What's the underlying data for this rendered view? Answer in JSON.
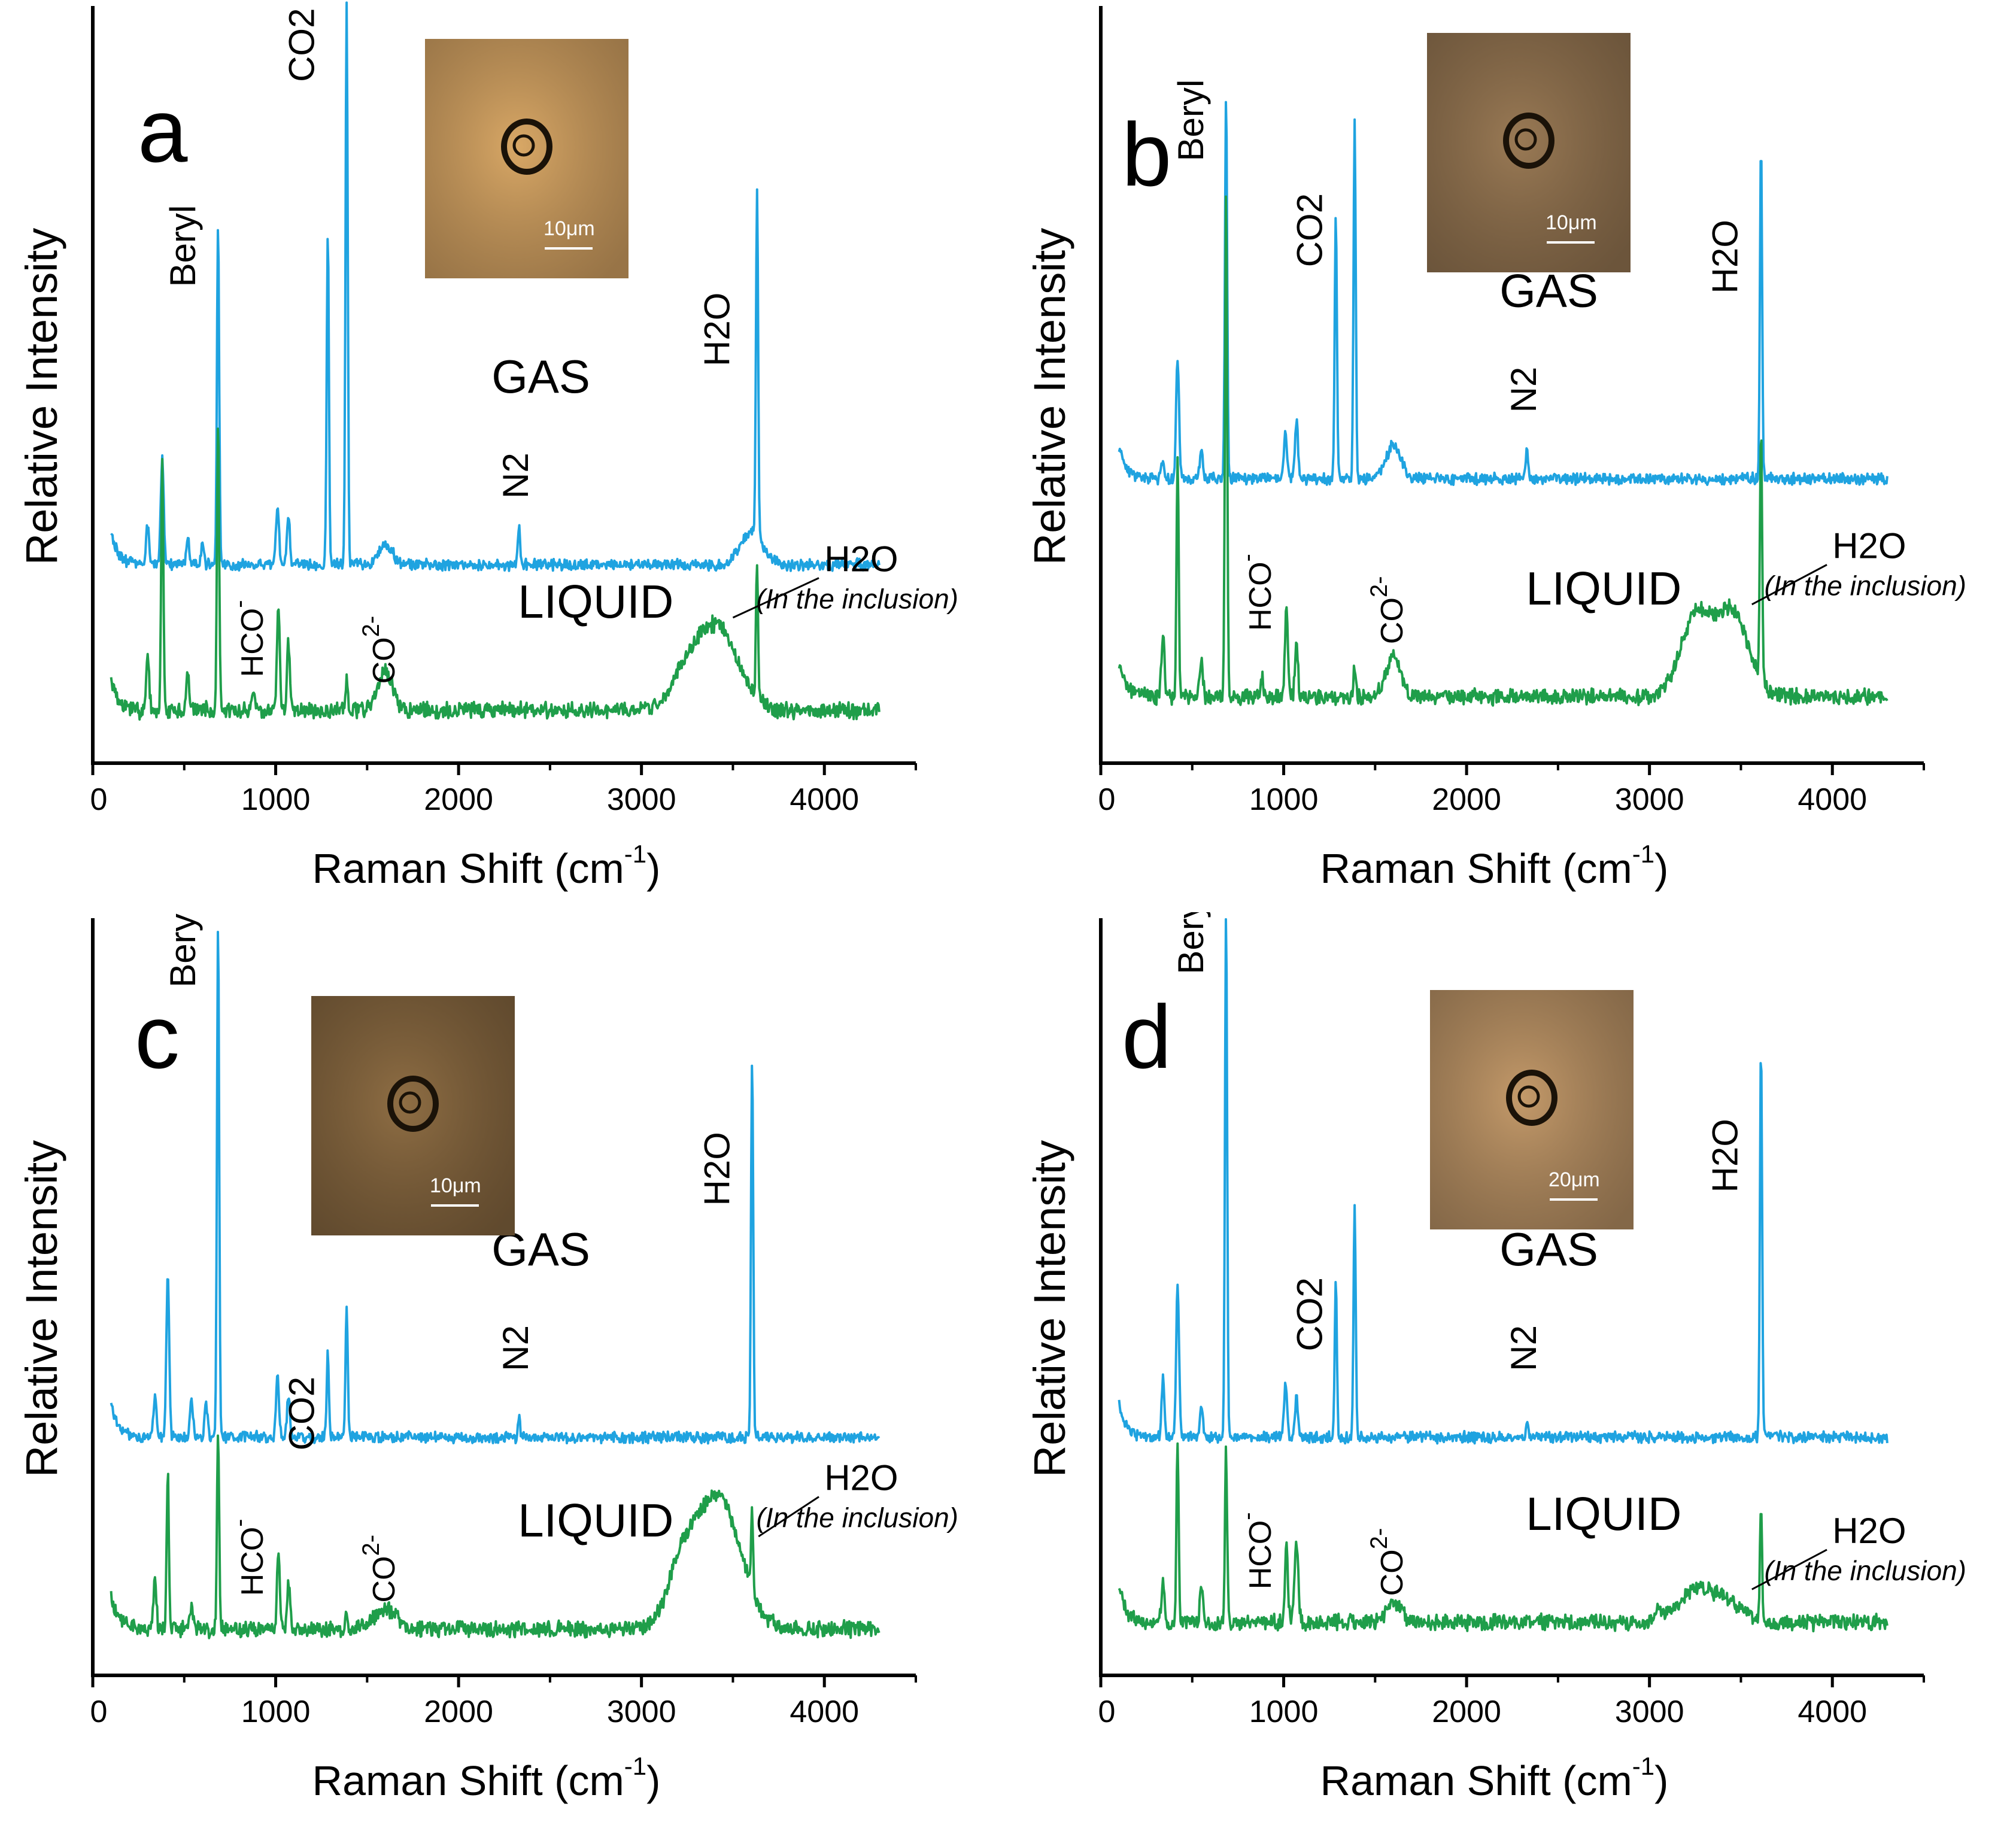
{
  "figure": {
    "panels": [
      {
        "letter": "a",
        "ylabel": "Relative  Intensity",
        "xlabel": "Raman  Shift (cm",
        "xlabel_sup": "-1",
        "xlabel_close": ")",
        "ticks": [
          "0",
          "1000",
          "2000",
          "3000",
          "4000"
        ],
        "gas_label": "GAS",
        "liquid_label": "LIQUID",
        "peak_labels": {
          "beryl": "Beryl",
          "co2": "CO2",
          "h2o": "H2O",
          "n2": "N2",
          "hco3": "HCO",
          "hco3_sup": "-",
          "co3": "CO",
          "co3_sup": "2-"
        },
        "h2o_inclusion_label": "H2O",
        "h2o_inclusion_note": "(In the inclusion)",
        "photo": {
          "scale_label": "10μm",
          "colors": {
            "bg": "#d9a866",
            "dark": "#3b2a1a"
          }
        }
      },
      {
        "letter": "b",
        "ylabel": "Relative  Intensity",
        "xlabel": "Raman  Shift (cm",
        "xlabel_sup": "-1",
        "xlabel_close": ")",
        "ticks": [
          "0",
          "1000",
          "2000",
          "3000",
          "4000"
        ],
        "gas_label": "GAS",
        "liquid_label": "LIQUID",
        "peak_labels": {
          "beryl": "Beryl",
          "co2": "CO2",
          "h2o": "H2O",
          "n2": "N2",
          "hco3": "HCO",
          "hco3_sup": "-",
          "co3": "CO",
          "co3_sup": "2-"
        },
        "h2o_inclusion_label": "H2O",
        "h2o_inclusion_note": "(In the inclusion)",
        "photo": {
          "scale_label": "10μm",
          "colors": {
            "bg": "#9a7a55",
            "dark": "#2a2016"
          }
        }
      },
      {
        "letter": "c",
        "ylabel": "Relative  Intensity",
        "xlabel": "Raman  Shift (cm",
        "xlabel_sup": "-1",
        "xlabel_close": ")",
        "ticks": [
          "0",
          "1000",
          "2000",
          "3000",
          "4000"
        ],
        "gas_label": "GAS",
        "liquid_label": "LIQUID",
        "peak_labels": {
          "beryl": "Beryl",
          "co2": "CO2",
          "h2o": "H2O",
          "n2": "N2",
          "hco3": "HCO",
          "hco3_sup": "-",
          "co3": "CO",
          "co3_sup": "2-"
        },
        "h2o_inclusion_label": "H2O",
        "h2o_inclusion_note": "(In the inclusion)",
        "photo": {
          "scale_label": "10μm",
          "colors": {
            "bg": "#8f6e44",
            "dark": "#1e160e"
          }
        }
      },
      {
        "letter": "d",
        "ylabel": "Relative  Intensity",
        "xlabel": "Raman  Shift (cm",
        "xlabel_sup": "-1",
        "xlabel_close": ")",
        "ticks": [
          "0",
          "1000",
          "2000",
          "3000",
          "4000"
        ],
        "gas_label": "GAS",
        "liquid_label": "LIQUID",
        "peak_labels": {
          "beryl": "Beryl",
          "co2": "CO2",
          "h2o": "H2O",
          "n2": "N2",
          "hco3": "HCO",
          "hco3_sup": "-",
          "co3": "CO",
          "co3_sup": "2-"
        },
        "h2o_inclusion_label": "H2O",
        "h2o_inclusion_note": "(In the inclusion)",
        "photo": {
          "scale_label": "20μm",
          "colors": {
            "bg": "#c49a6a",
            "dark": "#2a2118"
          }
        }
      }
    ]
  },
  "chart_data": [
    {
      "type": "line",
      "panel": "a",
      "xlabel": "Raman  Shift (cm-1)",
      "ylabel": "Relative  Intensity",
      "xlim": [
        0,
        4500
      ],
      "xticks": [
        0,
        1000,
        2000,
        3000,
        4000
      ],
      "colors": {
        "gas": "#1fa3e0",
        "liquid": "#1f9e4a"
      },
      "series": [
        {
          "name": "GAS",
          "base": 0.3,
          "peaks": [
            [
              300,
              0.06,
              8
            ],
            [
              380,
              0.16,
              8
            ],
            [
              520,
              0.04,
              8
            ],
            [
              600,
              0.03,
              8
            ],
            [
              685,
              0.52,
              6
            ],
            [
              1010,
              0.09,
              8
            ],
            [
              1070,
              0.07,
              8
            ],
            [
              1285,
              0.5,
              6
            ],
            [
              1388,
              0.85,
              6
            ],
            [
              1600,
              0.03,
              40
            ],
            [
              2330,
              0.06,
              6
            ],
            [
              3600,
              0.05,
              60
            ],
            [
              3632,
              0.52,
              6
            ]
          ]
        },
        {
          "name": "LIQUID",
          "base": 0.08,
          "peaks": [
            [
              300,
              0.08,
              8
            ],
            [
              380,
              0.38,
              6
            ],
            [
              520,
              0.06,
              8
            ],
            [
              685,
              0.44,
              6
            ],
            [
              880,
              0.03,
              8
            ],
            [
              1015,
              0.16,
              8
            ],
            [
              1070,
              0.1,
              8
            ],
            [
              1388,
              0.05,
              6
            ],
            [
              1600,
              0.06,
              40
            ],
            [
              3250,
              0.05,
              90
            ],
            [
              3420,
              0.12,
              110
            ],
            [
              3632,
              0.2,
              6
            ]
          ]
        }
      ]
    },
    {
      "type": "line",
      "panel": "b",
      "xlabel": "Raman  Shift (cm-1)",
      "ylabel": "Relative  Intensity",
      "xlim": [
        0,
        4500
      ],
      "xticks": [
        0,
        1000,
        2000,
        3000,
        4000
      ],
      "colors": {
        "gas": "#1fa3e0",
        "liquid": "#1f9e4a"
      },
      "series": [
        {
          "name": "GAS",
          "base": 0.43,
          "peaks": [
            [
              340,
              0.03,
              8
            ],
            [
              420,
              0.18,
              8
            ],
            [
              550,
              0.04,
              8
            ],
            [
              685,
              0.58,
              6
            ],
            [
              1010,
              0.07,
              8
            ],
            [
              1070,
              0.09,
              8
            ],
            [
              1285,
              0.4,
              6
            ],
            [
              1388,
              0.54,
              6
            ],
            [
              1600,
              0.05,
              40
            ],
            [
              2330,
              0.05,
              6
            ],
            [
              3610,
              0.5,
              6
            ]
          ]
        },
        {
          "name": "LIQUID",
          "base": 0.1,
          "peaks": [
            [
              340,
              0.1,
              8
            ],
            [
              420,
              0.36,
              6
            ],
            [
              550,
              0.06,
              8
            ],
            [
              685,
              0.76,
              6
            ],
            [
              880,
              0.03,
              8
            ],
            [
              1015,
              0.14,
              8
            ],
            [
              1070,
              0.08,
              8
            ],
            [
              1388,
              0.05,
              6
            ],
            [
              1600,
              0.06,
              40
            ],
            [
              3250,
              0.12,
              80
            ],
            [
              3450,
              0.13,
              90
            ],
            [
              3610,
              0.38,
              6
            ]
          ]
        }
      ]
    },
    {
      "type": "line",
      "panel": "c",
      "xlabel": "Raman  Shift (cm-1)",
      "ylabel": "Relative  Intensity",
      "xlim": [
        0,
        4500
      ],
      "xticks": [
        0,
        1000,
        2000,
        3000,
        4000
      ],
      "colors": {
        "gas": "#1fa3e0",
        "liquid": "#1f9e4a"
      },
      "series": [
        {
          "name": "GAS",
          "base": 0.36,
          "peaks": [
            [
              340,
              0.06,
              8
            ],
            [
              410,
              0.24,
              8
            ],
            [
              540,
              0.06,
              8
            ],
            [
              620,
              0.05,
              8
            ],
            [
              685,
              0.78,
              6
            ],
            [
              1010,
              0.09,
              8
            ],
            [
              1070,
              0.06,
              8
            ],
            [
              1285,
              0.13,
              6
            ],
            [
              1388,
              0.2,
              6
            ],
            [
              2330,
              0.03,
              6
            ],
            [
              3605,
              0.57,
              6
            ]
          ]
        },
        {
          "name": "LIQUID",
          "base": 0.07,
          "peaks": [
            [
              340,
              0.08,
              8
            ],
            [
              410,
              0.24,
              6
            ],
            [
              540,
              0.04,
              8
            ],
            [
              685,
              0.3,
              6
            ],
            [
              1015,
              0.12,
              8
            ],
            [
              1070,
              0.07,
              8
            ],
            [
              1388,
              0.03,
              6
            ],
            [
              1600,
              0.03,
              60
            ],
            [
              3220,
              0.08,
              80
            ],
            [
              3420,
              0.2,
              120
            ],
            [
              3605,
              0.12,
              6
            ]
          ]
        }
      ]
    },
    {
      "type": "line",
      "panel": "d",
      "xlabel": "Raman  Shift (cm-1)",
      "ylabel": "Relative  Intensity",
      "xlim": [
        0,
        4500
      ],
      "xticks": [
        0,
        1000,
        2000,
        3000,
        4000
      ],
      "colors": {
        "gas": "#1fa3e0",
        "liquid": "#1f9e4a"
      },
      "series": [
        {
          "name": "GAS",
          "base": 0.36,
          "peaks": [
            [
              340,
              0.09,
              8
            ],
            [
              420,
              0.23,
              8
            ],
            [
              550,
              0.05,
              8
            ],
            [
              685,
              0.8,
              6
            ],
            [
              1010,
              0.08,
              8
            ],
            [
              1070,
              0.06,
              8
            ],
            [
              1285,
              0.23,
              6
            ],
            [
              1388,
              0.35,
              6
            ],
            [
              2330,
              0.02,
              6
            ],
            [
              3610,
              0.59,
              6
            ]
          ]
        },
        {
          "name": "LIQUID",
          "base": 0.08,
          "peaks": [
            [
              340,
              0.06,
              8
            ],
            [
              420,
              0.27,
              6
            ],
            [
              550,
              0.05,
              8
            ],
            [
              685,
              0.26,
              6
            ],
            [
              1015,
              0.12,
              8
            ],
            [
              1070,
              0.12,
              10
            ],
            [
              1600,
              0.03,
              40
            ],
            [
              3050,
              0.02,
              20
            ],
            [
              3250,
              0.05,
              90
            ],
            [
              3430,
              0.03,
              80
            ],
            [
              3610,
              0.17,
              6
            ]
          ]
        }
      ]
    }
  ]
}
